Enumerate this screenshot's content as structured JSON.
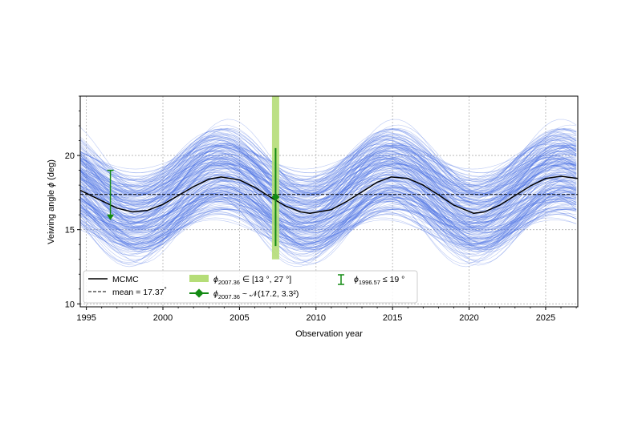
{
  "chart_data": {
    "type": "line",
    "xlabel": "Observation year",
    "ylabel_prefix": "Veiwing angle ",
    "ylabel_symbol": "ϕ",
    "ylabel_suffix": " (deg)",
    "xlim": [
      1994.6,
      2027.1
    ],
    "ylim": [
      9.8,
      24.0
    ],
    "x_ticks": [
      1995,
      2000,
      2005,
      2010,
      2015,
      2020,
      2025
    ],
    "y_ticks": [
      10,
      15,
      20
    ],
    "grid": true,
    "legend_position": "lower-left",
    "colors": {
      "mcmc_samples": "#4169e1",
      "mcmc": "#000000",
      "mean": "#000000",
      "interval_band": "#b5dd78",
      "constraint": "#138a13"
    },
    "mcmc_curve": {
      "name": "MCMC",
      "x": [
        1994.6,
        1995.0,
        1996.0,
        1997.0,
        1998.0,
        1999.0,
        2000.0,
        2001.0,
        2002.0,
        2003.0,
        2003.8,
        2005.0,
        2006.0,
        2007.0,
        2008.0,
        2009.0,
        2009.6,
        2011.0,
        2012.0,
        2013.0,
        2014.0,
        2014.9,
        2016.0,
        2017.0,
        2018.0,
        2019.0,
        2020.3,
        2021.0,
        2022.0,
        2023.0,
        2024.0,
        2025.0,
        2026.0,
        2027.1
      ],
      "y": [
        17.65,
        17.45,
        16.95,
        16.45,
        16.2,
        16.3,
        16.7,
        17.3,
        17.9,
        18.4,
        18.55,
        18.35,
        17.85,
        17.2,
        16.6,
        16.2,
        16.1,
        16.35,
        16.9,
        17.55,
        18.2,
        18.55,
        18.45,
        18.0,
        17.35,
        16.65,
        16.1,
        16.2,
        16.65,
        17.3,
        17.95,
        18.45,
        18.6,
        18.45
      ]
    },
    "mean": {
      "label": "mean = 17.37",
      "degree": "°",
      "value": 17.37
    },
    "interval_band": {
      "label_prefix": "ϕ",
      "label_sub": "2007.36",
      "label_rest": " ∈ [13 °, 27 °]",
      "x": 2007.36,
      "ymin": 13,
      "ymax": 27
    },
    "normal_constraint": {
      "label_prefix": "ϕ",
      "label_sub": "2007.36",
      "label_rest": " ~ 𝒩(17.2, 3.3²)",
      "x": 2007.36,
      "y": 17.2,
      "err": 3.3
    },
    "upper_limit": {
      "label_prefix": "ϕ",
      "label_sub": "1996.57",
      "label_rest": " ≤ 19 °",
      "x": 1996.57,
      "y": 19,
      "arrow_to": 15.7
    }
  }
}
